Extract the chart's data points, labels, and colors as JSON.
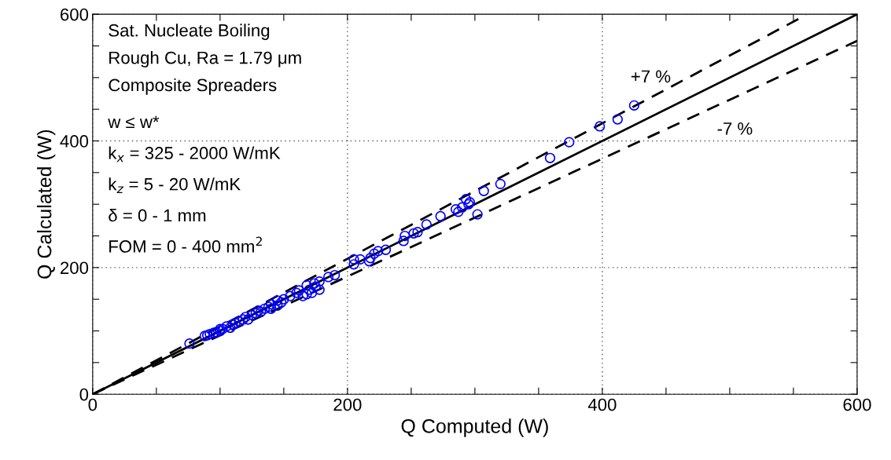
{
  "chart_data": {
    "type": "scatter",
    "xlabel": "Q Computed (W)",
    "ylabel": "Q Calculated (W)",
    "xlim": [
      0,
      600
    ],
    "ylim": [
      0,
      600
    ],
    "xticks": [
      0,
      {
        "value": 50,
        "label": null
      },
      {
        "value": 100,
        "label": null
      },
      {
        "value": 150,
        "label": null
      },
      200,
      {
        "value": 250,
        "label": null
      },
      {
        "value": 300,
        "label": null
      },
      {
        "value": 350,
        "label": null
      },
      400,
      {
        "value": 450,
        "label": null
      },
      {
        "value": 500,
        "label": null
      },
      {
        "value": 550,
        "label": null
      },
      600
    ],
    "yticks": [
      0,
      {
        "value": 50,
        "label": null
      },
      {
        "value": 100,
        "label": null
      },
      {
        "value": 150,
        "label": null
      },
      200,
      {
        "value": 250,
        "label": null
      },
      {
        "value": 300,
        "label": null
      },
      {
        "value": 350,
        "label": null
      },
      400,
      {
        "value": 450,
        "label": null
      },
      {
        "value": 500,
        "label": null
      },
      {
        "value": 550,
        "label": null
      },
      600
    ],
    "grid": true,
    "legend": false,
    "series": [
      {
        "color": "#0000ff",
        "marker": "circle",
        "x": [
          425,
          412,
          398,
          374,
          359,
          320,
          307,
          302,
          296,
          293,
          295,
          290,
          287,
          285,
          273,
          262,
          255,
          252,
          245,
          244,
          230,
          224,
          221,
          218,
          217,
          210,
          205,
          205,
          190,
          185,
          178,
          175,
          172,
          170,
          168,
          165,
          160,
          155,
          150,
          148,
          145,
          140,
          138,
          135,
          130,
          128,
          125,
          120,
          118,
          115,
          112,
          110,
          105,
          102,
          100,
          97,
          95,
          92,
          90,
          88,
          76,
          174,
          178,
          168,
          162,
          145,
          140,
          132,
          122,
          108,
          100
        ],
        "values": [
          456,
          434,
          423,
          398,
          373,
          332,
          321,
          284,
          303,
          308,
          300,
          295,
          288,
          292,
          281,
          268,
          256,
          254,
          250,
          242,
          228,
          226,
          222,
          215,
          210,
          213,
          205,
          213,
          188,
          185,
          178,
          170,
          160,
          165,
          158,
          155,
          160,
          155,
          150,
          145,
          148,
          142,
          138,
          135,
          132,
          128,
          125,
          122,
          118,
          115,
          112,
          110,
          107,
          103,
          100,
          98,
          97,
          95,
          93,
          92,
          80,
          175,
          165,
          172,
          164,
          140,
          135,
          130,
          118,
          105,
          103
        ]
      },
      {
        "type": "line",
        "color": "#000000",
        "line_style": "solid",
        "x": [
          0,
          600
        ],
        "values": [
          0,
          600
        ]
      },
      {
        "type": "line",
        "name": "+7 %",
        "color": "#000000",
        "line_style": "dashed",
        "x": [
          0,
          560
        ],
        "values": [
          0,
          599
        ]
      },
      {
        "type": "line",
        "name": "-7 %",
        "color": "#000000",
        "line_style": "dashed",
        "x": [
          0,
          600
        ],
        "values": [
          0,
          558
        ]
      }
    ],
    "annotations": [
      "Sat. Nucleate Boiling",
      "Rough Cu, Ra = 1.79 μm",
      "Composite Spreaders",
      "w ≤ w*",
      "k$_{x}$ = 325 - 2000 W/mK",
      "k$_{z}$ = 5 - 20 W/mK",
      "δ = 0 - 1 mm",
      "FOM = 0 - 400 mm$^{2}$"
    ]
  }
}
